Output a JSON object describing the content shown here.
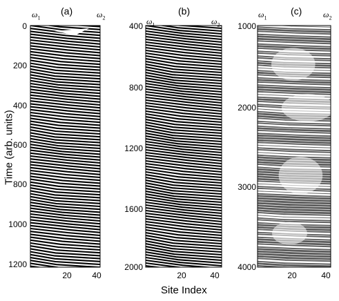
{
  "figure": {
    "ylabel": "Time (arb. units)",
    "xlabel": "Site Index"
  },
  "panels": [
    {
      "label": "(a)",
      "omega_left": "ω",
      "omega_left_sub": "1",
      "omega_right": "ω",
      "omega_right_sub": "2",
      "yticks": [
        "0",
        "200",
        "400",
        "600",
        "800",
        "1000",
        "1200"
      ],
      "xticks": [
        "20",
        "40"
      ]
    },
    {
      "label": "(b)",
      "omega_left": "ω",
      "omega_left_sub": "1",
      "omega_right": "ω",
      "omega_right_sub": "2",
      "yticks": [
        "400",
        "800",
        "1200",
        "1600",
        "2000"
      ],
      "xticks": [
        "20",
        "40"
      ]
    },
    {
      "label": "(c)",
      "omega_left": "ω",
      "omega_left_sub": "1",
      "omega_right": "ω",
      "omega_right_sub": "2",
      "yticks": [
        "1000",
        "2000",
        "3000",
        "4000"
      ],
      "xticks": [
        "20",
        "40"
      ]
    }
  ],
  "chart_data": [
    {
      "type": "heatmap",
      "title": "(a)",
      "xlabel": "Site Index",
      "ylabel": "Time (arb. units)",
      "xlim": [
        1,
        44
      ],
      "ylim": [
        0,
        1200
      ],
      "description_values": {
        "stripe_period": 16,
        "stripe_slope_drop": 4
      }
    },
    {
      "type": "heatmap",
      "title": "(b)",
      "xlabel": "Site Index",
      "xlim": [
        1,
        44
      ],
      "ylim": [
        400,
        2000
      ],
      "description_values": {
        "stripe_period": 12,
        "stripe_slope_drop": 6
      }
    },
    {
      "type": "heatmap",
      "title": "(c)",
      "xlabel": "Site Index",
      "xlim": [
        1,
        44
      ],
      "ylim": [
        1000,
        4000
      ],
      "description_values": {
        "stripe_period": 8,
        "stripe_slope_drop": 2
      }
    }
  ]
}
